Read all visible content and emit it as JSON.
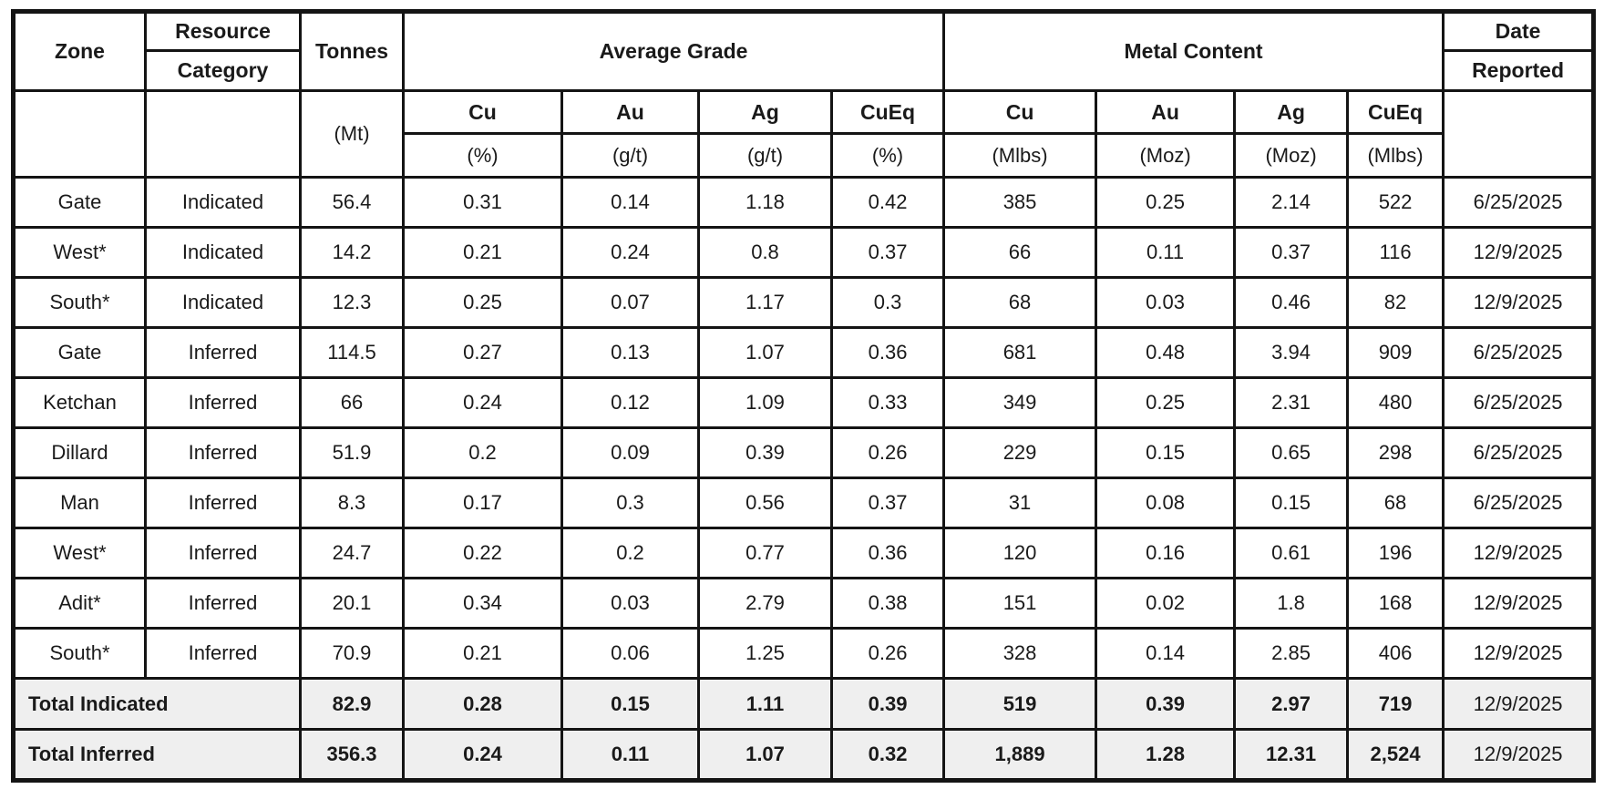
{
  "colors": {
    "border": "#141414",
    "text": "#1a1a1a",
    "total_row_bg": "#efefef",
    "background": "#ffffff"
  },
  "header": {
    "zone": "Zone",
    "resource": "Resource",
    "category": "Category",
    "tonnes": "Tonnes",
    "tonnes_unit": "(Mt)",
    "average_grade": "Average Grade",
    "metal_content": "Metal Content",
    "date": "Date",
    "reported": "Reported",
    "grade_columns": [
      {
        "element": "Cu",
        "unit": "(%)"
      },
      {
        "element": "Au",
        "unit": "(g/t)"
      },
      {
        "element": "Ag",
        "unit": "(g/t)"
      },
      {
        "element": "CuEq",
        "unit": "(%)"
      }
    ],
    "metal_columns": [
      {
        "element": "Cu",
        "unit": "(Mlbs)"
      },
      {
        "element": "Au",
        "unit": "(Moz)"
      },
      {
        "element": "Ag",
        "unit": "(Moz)"
      },
      {
        "element": "CuEq",
        "unit": "(Mlbs)"
      }
    ]
  },
  "rows": [
    {
      "zone": "Gate",
      "bold": false,
      "category": "Indicated",
      "tonnes": "56.4",
      "grade": [
        "0.31",
        "0.14",
        "1.18",
        "0.42"
      ],
      "metal": [
        "385",
        "0.25",
        "2.14",
        "522"
      ],
      "date": "6/25/2025"
    },
    {
      "zone": "West*",
      "bold": true,
      "category": "Indicated",
      "tonnes": "14.2",
      "grade": [
        "0.21",
        "0.24",
        "0.8",
        "0.37"
      ],
      "metal": [
        "66",
        "0.11",
        "0.37",
        "116"
      ],
      "date": "12/9/2025"
    },
    {
      "zone": "South*",
      "bold": true,
      "category": "Indicated",
      "tonnes": "12.3",
      "grade": [
        "0.25",
        "0.07",
        "1.17",
        "0.3"
      ],
      "metal": [
        "68",
        "0.03",
        "0.46",
        "82"
      ],
      "date": "12/9/2025"
    },
    {
      "zone": "Gate",
      "bold": false,
      "category": "Inferred",
      "tonnes": "114.5",
      "grade": [
        "0.27",
        "0.13",
        "1.07",
        "0.36"
      ],
      "metal": [
        "681",
        "0.48",
        "3.94",
        "909"
      ],
      "date": "6/25/2025"
    },
    {
      "zone": "Ketchan",
      "bold": false,
      "category": "Inferred",
      "tonnes": "66",
      "grade": [
        "0.24",
        "0.12",
        "1.09",
        "0.33"
      ],
      "metal": [
        "349",
        "0.25",
        "2.31",
        "480"
      ],
      "date": "6/25/2025"
    },
    {
      "zone": "Dillard",
      "bold": false,
      "category": "Inferred",
      "tonnes": "51.9",
      "grade": [
        "0.2",
        "0.09",
        "0.39",
        "0.26"
      ],
      "metal": [
        "229",
        "0.15",
        "0.65",
        "298"
      ],
      "date": "6/25/2025"
    },
    {
      "zone": "Man",
      "bold": false,
      "category": "Inferred",
      "tonnes": "8.3",
      "grade": [
        "0.17",
        "0.3",
        "0.56",
        "0.37"
      ],
      "metal": [
        "31",
        "0.08",
        "0.15",
        "68"
      ],
      "date": "6/25/2025"
    },
    {
      "zone": "West*",
      "bold": true,
      "category": "Inferred",
      "tonnes": "24.7",
      "grade": [
        "0.22",
        "0.2",
        "0.77",
        "0.36"
      ],
      "metal": [
        "120",
        "0.16",
        "0.61",
        "196"
      ],
      "date": "12/9/2025"
    },
    {
      "zone": "Adit*",
      "bold": true,
      "category": "Inferred",
      "tonnes": "20.1",
      "grade": [
        "0.34",
        "0.03",
        "2.79",
        "0.38"
      ],
      "metal": [
        "151",
        "0.02",
        "1.8",
        "168"
      ],
      "date": "12/9/2025"
    },
    {
      "zone": "South*",
      "bold": true,
      "category": "Inferred",
      "tonnes": "70.9",
      "grade": [
        "0.21",
        "0.06",
        "1.25",
        "0.26"
      ],
      "metal": [
        "328",
        "0.14",
        "2.85",
        "406"
      ],
      "date": "12/9/2025"
    }
  ],
  "totals": [
    {
      "label": "Total Indicated",
      "tonnes": "82.9",
      "grade": [
        "0.28",
        "0.15",
        "1.11",
        "0.39"
      ],
      "metal": [
        "519",
        "0.39",
        "2.97",
        "719"
      ],
      "date": "12/9/2025"
    },
    {
      "label": "Total Inferred",
      "tonnes": "356.3",
      "grade": [
        "0.24",
        "0.11",
        "1.07",
        "0.32"
      ],
      "metal": [
        "1,889",
        "1.28",
        "12.31",
        "2,524"
      ],
      "date": "12/9/2025"
    }
  ]
}
